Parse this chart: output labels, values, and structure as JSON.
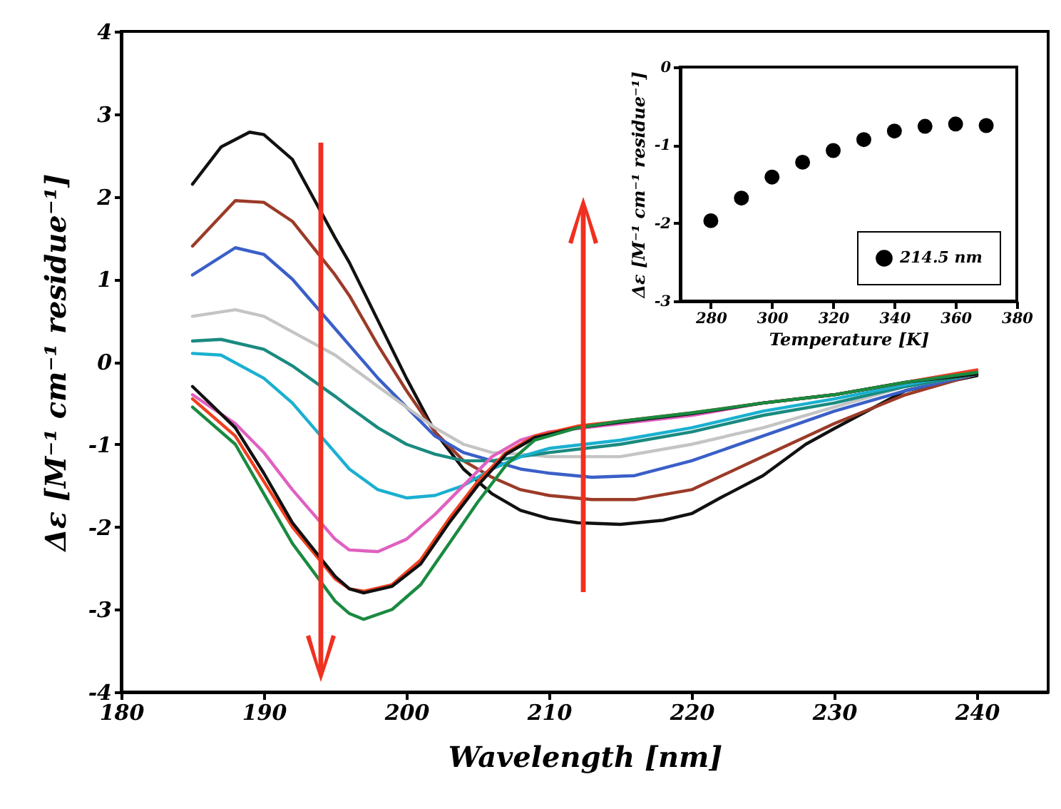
{
  "chart_data": [
    {
      "type": "line",
      "xlabel": "Wavelength [nm]",
      "ylabel": "Δε [M⁻¹ cm⁻¹ residue⁻¹]",
      "xlim": [
        180,
        245
      ],
      "ylim": [
        -4,
        4
      ],
      "xticks": [
        180,
        190,
        200,
        210,
        220,
        230,
        240
      ],
      "yticks": [
        -4,
        -3,
        -2,
        -1,
        0,
        1,
        2,
        3,
        4
      ],
      "grid": false,
      "series": [
        {
          "color": "#111111",
          "x": [
            185,
            187,
            189,
            190,
            192,
            195,
            196,
            198,
            200,
            202,
            204,
            206,
            208,
            210,
            212,
            215,
            218,
            220,
            222,
            225,
            228,
            230,
            235,
            240
          ],
          "values": [
            2.15,
            2.6,
            2.78,
            2.75,
            2.45,
            1.5,
            1.2,
            0.5,
            -0.2,
            -0.85,
            -1.3,
            -1.6,
            -1.8,
            -1.9,
            -1.95,
            -1.97,
            -1.92,
            -1.84,
            -1.65,
            -1.38,
            -1.0,
            -0.81,
            -0.35,
            -0.17
          ]
        },
        {
          "color": "#9b3b28",
          "x": [
            185,
            188,
            190,
            192,
            195,
            196,
            198,
            200,
            202,
            204,
            206,
            208,
            210,
            213,
            216,
            220,
            225,
            230,
            235,
            240
          ],
          "values": [
            1.4,
            1.95,
            1.93,
            1.7,
            1.05,
            0.8,
            0.2,
            -0.35,
            -0.85,
            -1.2,
            -1.4,
            -1.55,
            -1.62,
            -1.67,
            -1.67,
            -1.55,
            -1.15,
            -0.75,
            -0.4,
            -0.15
          ]
        },
        {
          "color": "#3a5fc8",
          "x": [
            185,
            188,
            190,
            192,
            195,
            196,
            198,
            200,
            202,
            204,
            206,
            208,
            210,
            213,
            216,
            220,
            225,
            230,
            235,
            240
          ],
          "values": [
            1.05,
            1.38,
            1.3,
            1.0,
            0.4,
            0.2,
            -0.2,
            -0.55,
            -0.9,
            -1.1,
            -1.2,
            -1.3,
            -1.35,
            -1.4,
            -1.38,
            -1.2,
            -0.9,
            -0.6,
            -0.35,
            -0.15
          ]
        },
        {
          "color": "#c4c4c4",
          "x": [
            185,
            188,
            190,
            195,
            198,
            200,
            202,
            204,
            206,
            208,
            210,
            215,
            220,
            225,
            230,
            235,
            240
          ],
          "values": [
            0.55,
            0.63,
            0.55,
            0.08,
            -0.3,
            -0.55,
            -0.8,
            -1.0,
            -1.1,
            -1.12,
            -1.15,
            -1.15,
            -1.0,
            -0.8,
            -0.55,
            -0.3,
            -0.15
          ]
        },
        {
          "color": "#1a8a80",
          "x": [
            185,
            187,
            190,
            192,
            195,
            196,
            198,
            200,
            202,
            204,
            206,
            208,
            210,
            215,
            220,
            225,
            230,
            235,
            240
          ],
          "values": [
            0.25,
            0.27,
            0.15,
            -0.05,
            -0.42,
            -0.55,
            -0.8,
            -1.0,
            -1.12,
            -1.2,
            -1.2,
            -1.15,
            -1.1,
            -1.0,
            -0.85,
            -0.65,
            -0.5,
            -0.3,
            -0.15
          ]
        },
        {
          "color": "#1ab0d0",
          "x": [
            185,
            187,
            190,
            192,
            195,
            196,
            198,
            200,
            202,
            204,
            206,
            208,
            210,
            215,
            220,
            225,
            230,
            235,
            240
          ],
          "values": [
            0.1,
            0.08,
            -0.2,
            -0.5,
            -1.1,
            -1.3,
            -1.55,
            -1.65,
            -1.62,
            -1.5,
            -1.3,
            -1.15,
            -1.05,
            -0.95,
            -0.8,
            -0.6,
            -0.45,
            -0.28,
            -0.12
          ]
        },
        {
          "color": "#e060c0",
          "x": [
            185,
            188,
            190,
            192,
            195,
            196,
            198,
            200,
            202,
            204,
            206,
            208,
            210,
            215,
            220,
            225,
            230,
            235,
            240
          ],
          "values": [
            -0.4,
            -0.75,
            -1.1,
            -1.55,
            -2.15,
            -2.28,
            -2.3,
            -2.15,
            -1.85,
            -1.5,
            -1.15,
            -0.95,
            -0.85,
            -0.75,
            -0.65,
            -0.5,
            -0.4,
            -0.25,
            -0.1
          ]
        },
        {
          "color": "#f04020",
          "x": [
            185,
            188,
            190,
            192,
            195,
            196,
            197,
            199,
            201,
            203,
            205,
            207,
            209,
            212,
            215,
            220,
            225,
            230,
            235,
            240
          ],
          "values": [
            -0.45,
            -0.9,
            -1.45,
            -2.0,
            -2.63,
            -2.75,
            -2.78,
            -2.7,
            -2.4,
            -1.9,
            -1.45,
            -1.1,
            -0.9,
            -0.78,
            -0.72,
            -0.62,
            -0.5,
            -0.4,
            -0.25,
            -0.1
          ]
        },
        {
          "color": "#111111",
          "x": [
            185,
            188,
            190,
            192,
            195,
            196,
            197,
            199,
            201,
            203,
            205,
            207,
            209,
            212,
            215,
            220,
            225,
            230,
            235,
            240
          ],
          "values": [
            -0.3,
            -0.8,
            -1.35,
            -1.95,
            -2.6,
            -2.75,
            -2.8,
            -2.72,
            -2.45,
            -1.95,
            -1.5,
            -1.12,
            -0.92,
            -0.8,
            -0.73,
            -0.63,
            -0.5,
            -0.4,
            -0.25,
            -0.15
          ]
        },
        {
          "color": "#1a8a40",
          "x": [
            185,
            188,
            190,
            192,
            195,
            196,
            197,
            199,
            201,
            203,
            205,
            207,
            209,
            212,
            215,
            220,
            225,
            230,
            235,
            240
          ],
          "values": [
            -0.55,
            -1.0,
            -1.6,
            -2.2,
            -2.9,
            -3.05,
            -3.12,
            -3.0,
            -2.7,
            -2.2,
            -1.7,
            -1.25,
            -0.95,
            -0.8,
            -0.72,
            -0.62,
            -0.5,
            -0.4,
            -0.25,
            -0.13
          ]
        }
      ]
    },
    {
      "type": "scatter",
      "xlabel": "Temperature [K]",
      "ylabel": "Δε [M⁻¹ cm⁻¹ residue⁻¹]",
      "xlim": [
        270,
        380
      ],
      "ylim": [
        -3,
        0
      ],
      "xticks": [
        280,
        300,
        320,
        340,
        360,
        380
      ],
      "yticks": [
        -3,
        -2,
        -1,
        0
      ],
      "grid": false,
      "legend": "bottom right",
      "marker": "circle",
      "x": [
        280,
        290,
        300,
        310,
        320,
        330,
        340,
        350,
        360,
        370
      ],
      "series": [
        {
          "name": "214.5 nm",
          "color": "#000000",
          "values": [
            -1.97,
            -1.68,
            -1.41,
            -1.22,
            -1.07,
            -0.93,
            -0.82,
            -0.76,
            -0.73,
            -0.75
          ]
        }
      ]
    }
  ]
}
